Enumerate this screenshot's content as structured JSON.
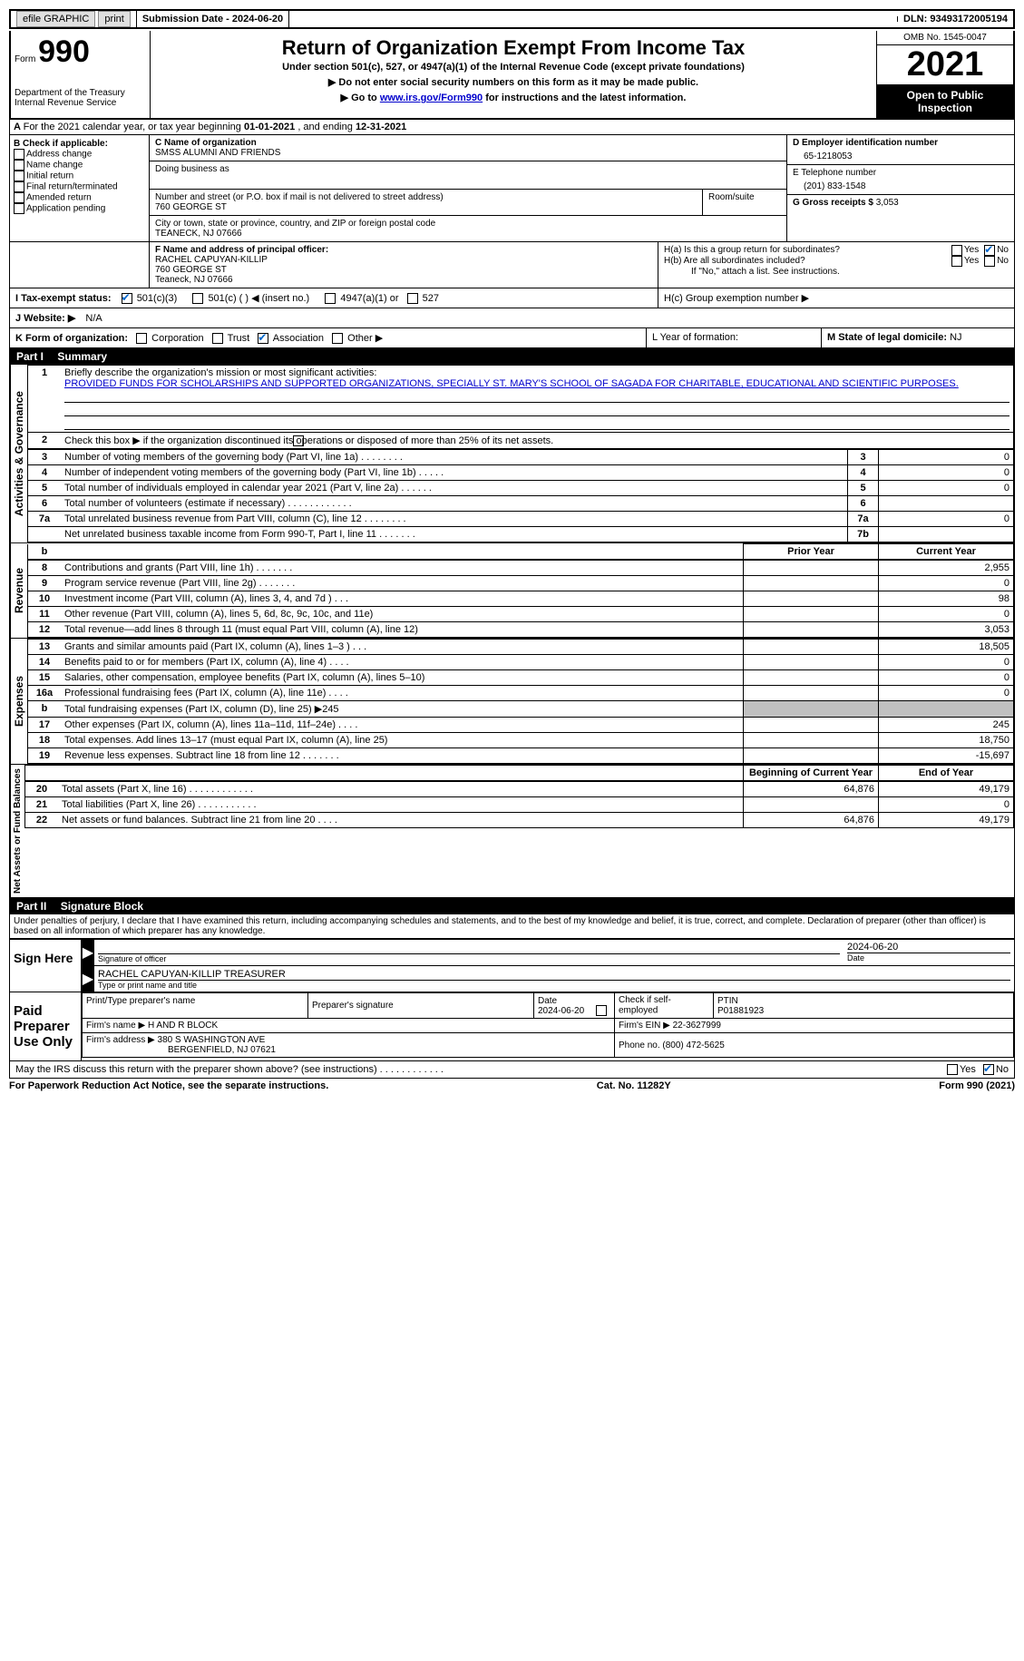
{
  "top_bar": {
    "efile": "efile GRAPHIC",
    "print": "print",
    "sub_date_label": "Submission Date - ",
    "sub_date": "2024-06-20",
    "dln_label": "DLN: ",
    "dln": "93493172005194"
  },
  "header": {
    "form_label": "Form",
    "form_num": "990",
    "dept": "Department of the Treasury",
    "irs": "Internal Revenue Service",
    "title": "Return of Organization Exempt From Income Tax",
    "subtitle": "Under section 501(c), 527, or 4947(a)(1) of the Internal Revenue Code (except private foundations)",
    "note1": "▶ Do not enter social security numbers on this form as it may be made public.",
    "note2_a": "▶ Go to ",
    "note2_link": "www.irs.gov/Form990",
    "note2_b": " for instructions and the latest information.",
    "omb": "OMB No. 1545-0047",
    "year": "2021",
    "inspection": "Open to Public Inspection"
  },
  "section_a": {
    "text": "For the 2021 calendar year, or tax year beginning ",
    "begin": "01-01-2021",
    "mid": " , and ending ",
    "end": "12-31-2021"
  },
  "section_b": {
    "label": "B Check if applicable:",
    "items": [
      "Address change",
      "Name change",
      "Initial return",
      "Final return/terminated",
      "Amended return",
      "Application pending"
    ]
  },
  "section_c": {
    "name_label": "C Name of organization",
    "name": "SMSS ALUMNI AND FRIENDS",
    "dba_label": "Doing business as",
    "street_label": "Number and street (or P.O. box if mail is not delivered to street address)",
    "room_label": "Room/suite",
    "street": "760 GEORGE ST",
    "city_label": "City or town, state or province, country, and ZIP or foreign postal code",
    "city": "TEANECK, NJ  07666"
  },
  "section_d": {
    "label": "D Employer identification number",
    "value": "65-1218053"
  },
  "section_e": {
    "label": "E Telephone number",
    "value": "(201) 833-1548"
  },
  "section_g": {
    "label": "G Gross receipts $ ",
    "value": "3,053"
  },
  "section_f": {
    "label": "F  Name and address of principal officer:",
    "name": "RACHEL CAPUYAN-KILLIP",
    "street": "760 GEORGE ST",
    "city": "Teaneck, NJ  07666"
  },
  "section_h": {
    "a": "H(a)  Is this a group return for subordinates?",
    "b": "H(b)  Are all subordinates included?",
    "b_note": "If \"No,\" attach a list. See instructions.",
    "c": "H(c)  Group exemption number ▶",
    "yes": "Yes",
    "no": "No"
  },
  "section_i": {
    "label": "I  Tax-exempt status:",
    "opts": [
      "501(c)(3)",
      "501(c) (  ) ◀ (insert no.)",
      "4947(a)(1) or",
      "527"
    ]
  },
  "section_j": {
    "label": "J  Website: ▶",
    "value": "N/A"
  },
  "section_k": {
    "label": "K Form of organization:",
    "opts": [
      "Corporation",
      "Trust",
      "Association",
      "Other ▶"
    ]
  },
  "section_l": {
    "label": "L Year of formation:"
  },
  "section_m": {
    "label": "M State of legal domicile: ",
    "value": "NJ"
  },
  "part1": {
    "header": "Part I",
    "title": "Summary",
    "line1_label": "Briefly describe the organization's mission or most significant activities:",
    "mission": "PROVIDED FUNDS FOR SCHOLARSHIPS AND SUPPORTED ORGANIZATIONS, SPECIALLY ST. MARY'S SCHOOL OF SAGADA FOR CHARITABLE, EDUCATIONAL AND SCIENTIFIC PURPOSES.",
    "line2": "Check this box ▶      if the organization discontinued its operations or disposed of more than 25% of its net assets.",
    "rows_ag": [
      {
        "n": "3",
        "label": "Number of voting members of the governing body (Part VI, line 1a)  .    .    .    .    .    .    .    .",
        "box": "3",
        "val": "0"
      },
      {
        "n": "4",
        "label": "Number of independent voting members of the governing body (Part VI, line 1b)  .    .    .    .    .",
        "box": "4",
        "val": "0"
      },
      {
        "n": "5",
        "label": "Total number of individuals employed in calendar year 2021 (Part V, line 2a)  .    .    .    .    .    .",
        "box": "5",
        "val": "0"
      },
      {
        "n": "6",
        "label": "Total number of volunteers (estimate if necessary)   .    .    .    .    .    .    .    .    .    .    .    .",
        "box": "6",
        "val": ""
      },
      {
        "n": "7a",
        "label": "Total unrelated business revenue from Part VIII, column (C), line 12  .    .    .    .    .    .    .    .",
        "box": "7a",
        "val": "0"
      },
      {
        "n": "",
        "label": "Net unrelated business taxable income from Form 990-T, Part I, line 11  .    .    .    .    .    .    .",
        "box": "7b",
        "val": ""
      }
    ],
    "col_headers": {
      "prior": "Prior Year",
      "current": "Current Year"
    },
    "rows_rev": [
      {
        "n": "8",
        "label": "Contributions and grants (Part VIII, line 1h)   .    .    .    .    .    .    .",
        "p": "",
        "c": "2,955"
      },
      {
        "n": "9",
        "label": "Program service revenue (Part VIII, line 2g)   .    .    .    .    .    .    .",
        "p": "",
        "c": "0"
      },
      {
        "n": "10",
        "label": "Investment income (Part VIII, column (A), lines 3, 4, and 7d )   .    .    .",
        "p": "",
        "c": "98"
      },
      {
        "n": "11",
        "label": "Other revenue (Part VIII, column (A), lines 5, 6d, 8c, 9c, 10c, and 11e)",
        "p": "",
        "c": "0"
      },
      {
        "n": "12",
        "label": "Total revenue—add lines 8 through 11 (must equal Part VIII, column (A), line 12)",
        "p": "",
        "c": "3,053"
      }
    ],
    "rows_exp": [
      {
        "n": "13",
        "label": "Grants and similar amounts paid (Part IX, column (A), lines 1–3 )   .    .    .",
        "p": "",
        "c": "18,505"
      },
      {
        "n": "14",
        "label": "Benefits paid to or for members (Part IX, column (A), line 4)   .    .    .    .",
        "p": "",
        "c": "0"
      },
      {
        "n": "15",
        "label": "Salaries, other compensation, employee benefits (Part IX, column (A), lines 5–10)",
        "p": "",
        "c": "0"
      },
      {
        "n": "16a",
        "label": "Professional fundraising fees (Part IX, column (A), line 11e)   .    .    .    .",
        "p": "",
        "c": "0"
      },
      {
        "n": "b",
        "label": "Total fundraising expenses (Part IX, column (D), line 25) ▶245",
        "p": "shaded",
        "c": "shaded"
      },
      {
        "n": "17",
        "label": "Other expenses (Part IX, column (A), lines 11a–11d, 11f–24e)   .    .    .    .",
        "p": "",
        "c": "245"
      },
      {
        "n": "18",
        "label": "Total expenses. Add lines 13–17 (must equal Part IX, column (A), line 25)",
        "p": "",
        "c": "18,750"
      },
      {
        "n": "19",
        "label": "Revenue less expenses. Subtract line 18 from line 12  .    .    .    .    .    .    .",
        "p": "",
        "c": "-15,697"
      }
    ],
    "col_headers2": {
      "begin": "Beginning of Current Year",
      "end": "End of Year"
    },
    "rows_net": [
      {
        "n": "20",
        "label": "Total assets (Part X, line 16)  .    .    .    .    .    .    .    .    .    .    .    .",
        "p": "64,876",
        "c": "49,179"
      },
      {
        "n": "21",
        "label": "Total liabilities (Part X, line 26)  .    .    .    .    .    .    .    .    .    .    .",
        "p": "",
        "c": "0"
      },
      {
        "n": "22",
        "label": "Net assets or fund balances. Subtract line 21 from line 20  .    .    .    .",
        "p": "64,876",
        "c": "49,179"
      }
    ],
    "vlabels": {
      "ag": "Activities & Governance",
      "rev": "Revenue",
      "exp": "Expenses",
      "net": "Net Assets or Fund Balances"
    }
  },
  "part2": {
    "header": "Part II",
    "title": "Signature Block",
    "declaration": "Under penalties of perjury, I declare that I have examined this return, including accompanying schedules and statements, and to the best of my knowledge and belief, it is true, correct, and complete. Declaration of preparer (other than officer) is based on all information of which preparer has any knowledge.",
    "sign_here": "Sign Here",
    "sig_officer": "Signature of officer",
    "date_label": "Date",
    "sig_date": "2024-06-20",
    "name_title": "RACHEL CAPUYAN-KILLIP  TREASURER",
    "type_label": "Type or print name and title",
    "paid": "Paid Preparer Use Only",
    "prep_name_label": "Print/Type preparer's name",
    "prep_sig_label": "Preparer's signature",
    "prep_date": "2024-06-20",
    "self_emp": "Check       if self-employed",
    "ptin_label": "PTIN",
    "ptin": "P01881923",
    "firm_name_label": "Firm's name    ▶ ",
    "firm_name": "H AND R BLOCK",
    "firm_ein_label": "Firm's EIN ▶ ",
    "firm_ein": "22-3627999",
    "firm_addr_label": "Firm's address ▶ ",
    "firm_addr": "380 S WASHINGTON AVE",
    "firm_city": "BERGENFIELD, NJ  07621",
    "phone_label": "Phone no. ",
    "phone": "(800) 472-5625",
    "discuss": "May the IRS discuss this return with the preparer shown above? (see instructions)   .    .    .    .    .    .    .    .    .    .    .    ."
  },
  "footer": {
    "left": "For Paperwork Reduction Act Notice, see the separate instructions.",
    "mid": "Cat. No. 11282Y",
    "right": "Form 990 (2021)"
  }
}
